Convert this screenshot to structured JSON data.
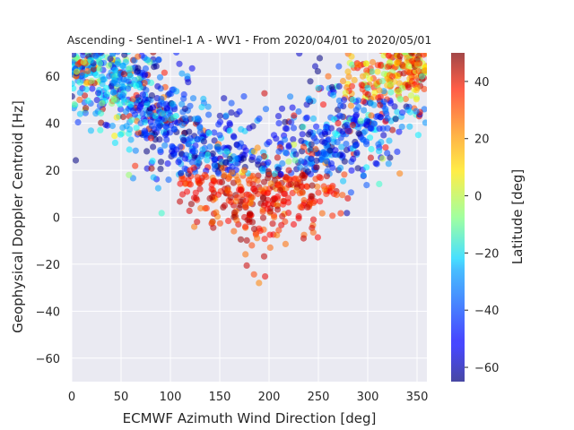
{
  "chart_data": {
    "type": "scatter",
    "title": "Ascending - Sentinel-1 A - WV1 - From 2020/04/01 to 2020/05/01",
    "xlabel": "ECMWF Azimuth Wind Direction [deg]",
    "ylabel": "Geophysical Doppler Centroid [Hz]",
    "xlim": [
      0,
      360
    ],
    "ylim": [
      -70,
      70
    ],
    "xticks": [
      "0",
      "50",
      "100",
      "150",
      "200",
      "250",
      "300",
      "350"
    ],
    "xtick_values": [
      0,
      50,
      100,
      150,
      200,
      250,
      300,
      350
    ],
    "yticks": [
      "−60",
      "−40",
      "−20",
      "0",
      "20",
      "40",
      "60"
    ],
    "ytick_values": [
      -60,
      -40,
      -20,
      0,
      20,
      40,
      60
    ],
    "grid": true,
    "colorbar": {
      "label": "Latitude [deg]",
      "range": [
        -65,
        50
      ],
      "ticks": [
        "−60",
        "−40",
        "−20",
        "0",
        "20",
        "40"
      ],
      "tick_values": [
        -60,
        -40,
        -20,
        0,
        20,
        40
      ],
      "colormap": "jet"
    },
    "sample_points": [
      [
        5,
        62,
        5
      ],
      [
        12,
        66,
        0
      ],
      [
        20,
        58,
        -5
      ],
      [
        28,
        63,
        -15
      ],
      [
        35,
        55,
        -22
      ],
      [
        42,
        60,
        -28
      ],
      [
        8,
        50,
        25
      ],
      [
        15,
        57,
        10
      ],
      [
        48,
        52,
        -30
      ],
      [
        55,
        45,
        -35
      ],
      [
        60,
        48,
        -25
      ],
      [
        65,
        56,
        -20
      ],
      [
        70,
        40,
        -40
      ],
      [
        75,
        50,
        -45
      ],
      [
        80,
        44,
        -38
      ],
      [
        88,
        38,
        -42
      ],
      [
        95,
        35,
        -48
      ],
      [
        100,
        42,
        -30
      ],
      [
        110,
        30,
        -45
      ],
      [
        115,
        25,
        -50
      ],
      [
        120,
        20,
        35
      ],
      [
        125,
        28,
        -40
      ],
      [
        130,
        12,
        40
      ],
      [
        135,
        18,
        30
      ],
      [
        140,
        8,
        45
      ],
      [
        145,
        22,
        -35
      ],
      [
        150,
        15,
        38
      ],
      [
        155,
        5,
        42
      ],
      [
        160,
        10,
        30
      ],
      [
        165,
        2,
        45
      ],
      [
        170,
        30,
        -45
      ],
      [
        175,
        0,
        40
      ],
      [
        180,
        -2,
        42
      ],
      [
        185,
        12,
        35
      ],
      [
        190,
        25,
        -40
      ],
      [
        195,
        5,
        38
      ],
      [
        200,
        18,
        30
      ],
      [
        205,
        35,
        -50
      ],
      [
        210,
        28,
        -42
      ],
      [
        215,
        10,
        35
      ],
      [
        220,
        20,
        40
      ],
      [
        225,
        38,
        -45
      ],
      [
        230,
        45,
        -40
      ],
      [
        235,
        30,
        30
      ],
      [
        240,
        50,
        -35
      ],
      [
        245,
        42,
        -30
      ],
      [
        250,
        55,
        -25
      ],
      [
        255,
        48,
        35
      ],
      [
        260,
        60,
        25
      ],
      [
        265,
        52,
        -30
      ],
      [
        270,
        40,
        38
      ],
      [
        275,
        58,
        20
      ],
      [
        280,
        62,
        15
      ],
      [
        285,
        50,
        -20
      ],
      [
        290,
        65,
        20
      ],
      [
        295,
        60,
        18
      ],
      [
        300,
        55,
        -25
      ],
      [
        305,
        66,
        22
      ],
      [
        310,
        62,
        10
      ],
      [
        315,
        58,
        -10
      ],
      [
        320,
        64,
        25
      ],
      [
        325,
        60,
        30
      ],
      [
        330,
        66,
        18
      ],
      [
        335,
        55,
        -5
      ],
      [
        340,
        62,
        28
      ],
      [
        345,
        58,
        32
      ],
      [
        350,
        65,
        20
      ],
      [
        355,
        60,
        -15
      ],
      [
        150,
        35,
        -45
      ],
      [
        160,
        40,
        -50
      ],
      [
        170,
        45,
        -48
      ],
      [
        180,
        38,
        -55
      ],
      [
        190,
        42,
        -45
      ],
      [
        200,
        32,
        -50
      ],
      [
        210,
        40,
        -48
      ],
      [
        220,
        30,
        -52
      ],
      [
        175,
        20,
        25
      ],
      [
        185,
        28,
        15
      ],
      [
        195,
        15,
        45
      ],
      [
        205,
        8,
        35
      ],
      [
        140,
        30,
        -38
      ],
      [
        130,
        38,
        -35
      ],
      [
        235,
        -9,
        42
      ],
      [
        245,
        -1,
        38
      ],
      [
        127,
        -2,
        40
      ],
      [
        185,
        -5,
        45
      ],
      [
        58,
        18,
        -5
      ],
      [
        315,
        25,
        0
      ],
      [
        228,
        14,
        42
      ],
      [
        262,
        11,
        35
      ]
    ]
  }
}
